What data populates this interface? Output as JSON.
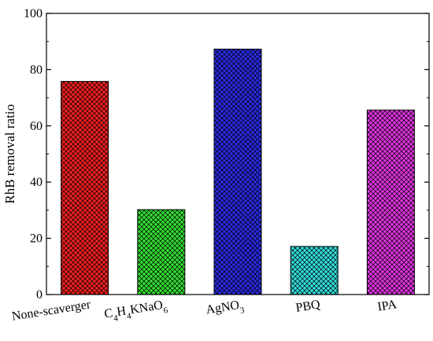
{
  "chart_data": {
    "type": "bar",
    "title": "",
    "xlabel": "",
    "ylabel": "RhB  removal ratio",
    "ylim": [
      0,
      100
    ],
    "yticks": [
      0,
      20,
      40,
      60,
      80,
      100
    ],
    "grid": false,
    "categories": [
      {
        "segments": [
          {
            "text": "None-scaverger"
          }
        ]
      },
      {
        "segments": [
          {
            "text": "C"
          },
          {
            "text": "4",
            "sub": true
          },
          {
            "text": "H"
          },
          {
            "text": "4",
            "sub": true
          },
          {
            "text": "KNaO"
          },
          {
            "text": "6",
            "sub": true
          }
        ]
      },
      {
        "segments": [
          {
            "text": "AgNO"
          },
          {
            "text": "3",
            "sub": true
          }
        ]
      },
      {
        "segments": [
          {
            "text": "PBQ"
          }
        ]
      },
      {
        "segments": [
          {
            "text": "IPA"
          }
        ]
      }
    ],
    "values": [
      75.8,
      30.2,
      87.3,
      17.1,
      65.6
    ],
    "colors": [
      "#f02020",
      "#33dd33",
      "#2a2ae0",
      "#33dddd",
      "#dd33dd"
    ],
    "pattern": "crosshatch"
  }
}
